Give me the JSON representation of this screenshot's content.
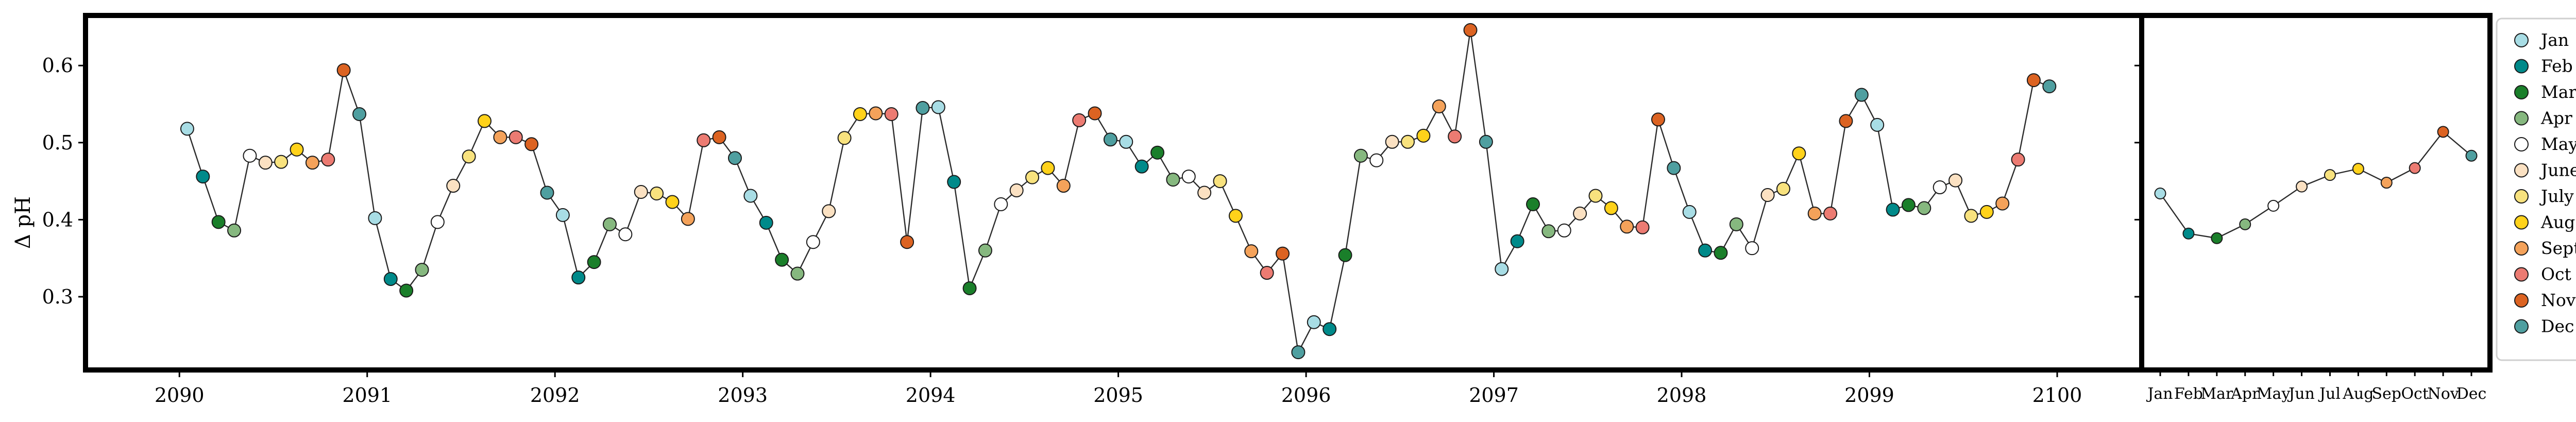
{
  "chart_data": [
    {
      "type": "line",
      "ylabel": "Δ pH",
      "ylim": [
        0.205,
        0.665
      ],
      "xlim": [
        2089.5,
        2100.45
      ],
      "xticks": [
        2090,
        2091,
        2092,
        2093,
        2094,
        2095,
        2096,
        2097,
        2098,
        2099,
        2100
      ],
      "yticks": [
        0.3,
        0.4,
        0.5,
        0.6
      ],
      "series": [
        {
          "year": 2090,
          "values": [
            0.518,
            0.456,
            0.397,
            0.386,
            0.483,
            0.474,
            0.475,
            0.491,
            0.474,
            0.478,
            0.594,
            0.537
          ]
        },
        {
          "year": 2091,
          "values": [
            0.402,
            0.323,
            0.308,
            0.335,
            0.397,
            0.444,
            0.482,
            0.528,
            0.507,
            0.507,
            0.498,
            0.435
          ]
        },
        {
          "year": 2092,
          "values": [
            0.406,
            0.325,
            0.345,
            0.394,
            0.381,
            0.436,
            0.434,
            0.423,
            0.401,
            0.503,
            0.507,
            0.48
          ]
        },
        {
          "year": 2093,
          "values": [
            0.431,
            0.396,
            0.348,
            0.33,
            0.371,
            0.411,
            0.506,
            0.537,
            0.538,
            0.537,
            0.371,
            0.545
          ]
        },
        {
          "year": 2094,
          "values": [
            0.546,
            0.449,
            0.311,
            0.36,
            0.42,
            0.438,
            0.455,
            0.467,
            0.444,
            0.529,
            0.538,
            0.504
          ]
        },
        {
          "year": 2095,
          "values": [
            0.501,
            0.469,
            0.487,
            0.452,
            0.456,
            0.435,
            0.45,
            0.405,
            0.359,
            0.331,
            0.356,
            0.228
          ]
        },
        {
          "year": 2096,
          "values": [
            0.267,
            0.258,
            0.354,
            0.483,
            0.477,
            0.501,
            0.501,
            0.509,
            0.547,
            0.508,
            0.646,
            0.501
          ]
        },
        {
          "year": 2097,
          "values": [
            0.336,
            0.372,
            0.42,
            0.385,
            0.386,
            0.408,
            0.431,
            0.415,
            0.391,
            0.39,
            0.53,
            0.467
          ]
        },
        {
          "year": 2098,
          "values": [
            0.41,
            0.36,
            0.357,
            0.394,
            0.363,
            0.432,
            0.44,
            0.486,
            0.408,
            0.408,
            0.528,
            0.562
          ]
        },
        {
          "year": 2099,
          "values": [
            0.523,
            0.413,
            0.419,
            0.415,
            0.442,
            0.451,
            0.405,
            0.41,
            0.421,
            0.478,
            0.581,
            0.573
          ]
        }
      ]
    },
    {
      "type": "line",
      "categories": [
        "Jan",
        "Feb",
        "Mar",
        "Apr",
        "May",
        "Jun",
        "Jul",
        "Aug",
        "Sep",
        "Oct",
        "Nov",
        "Dec"
      ],
      "values": [
        0.434,
        0.382,
        0.376,
        0.394,
        0.418,
        0.443,
        0.458,
        0.466,
        0.448,
        0.467,
        0.514,
        0.483
      ],
      "ylim": [
        0.205,
        0.665
      ]
    }
  ],
  "legend": {
    "placement": "right",
    "entries": [
      {
        "label": "Jan",
        "color": "#a8dde5"
      },
      {
        "label": "Feb",
        "color": "#008a8a"
      },
      {
        "label": "Mar",
        "color": "#1a7f2a"
      },
      {
        "label": "Apr",
        "color": "#86b87f"
      },
      {
        "label": "May",
        "color": "#ffffff"
      },
      {
        "label": "June",
        "color": "#fbe1c2"
      },
      {
        "label": "July",
        "color": "#f8e27e"
      },
      {
        "label": "Aug",
        "color": "#ffd21a"
      },
      {
        "label": "Sept",
        "color": "#f4a25a"
      },
      {
        "label": "Oct",
        "color": "#ec7b72"
      },
      {
        "label": "Nov",
        "color": "#dc6322"
      },
      {
        "label": "Dec",
        "color": "#4f9fa0"
      }
    ]
  }
}
